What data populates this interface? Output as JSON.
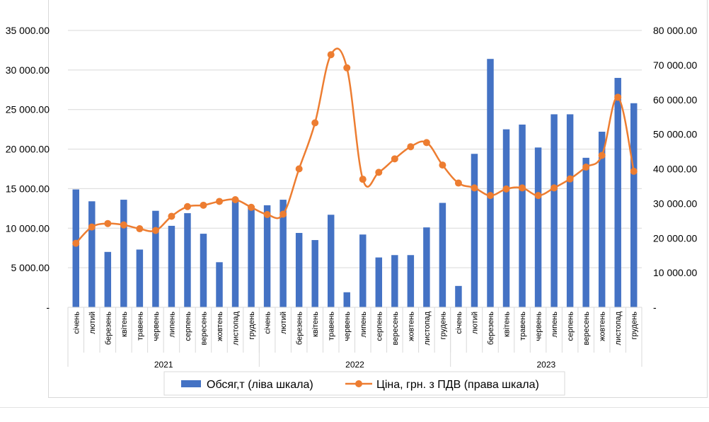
{
  "chart_data": {
    "type": "bar+line",
    "title": "",
    "categories": [
      "січень",
      "лютий",
      "березень",
      "квітень",
      "травень",
      "червень",
      "липень",
      "серпень",
      "вересень",
      "жовтень",
      "листопад",
      "грудень",
      "січень",
      "лютий",
      "березень",
      "квітень",
      "травень",
      "червень",
      "липень",
      "серпень",
      "вересень",
      "жовтень",
      "листопад",
      "грудень",
      "січень",
      "лютий",
      "березень",
      "квітень",
      "травень",
      "червень",
      "липень",
      "серпень",
      "вересень",
      "жовтень",
      "листопад",
      "грудень"
    ],
    "year_groups": [
      {
        "label": "2021",
        "count": 12
      },
      {
        "label": "2022",
        "count": 12
      },
      {
        "label": "2023",
        "count": 12
      }
    ],
    "series": [
      {
        "name": "Обсяг,т (ліва шкала)",
        "type": "bar",
        "axis": "left",
        "color": "#4472c4",
        "values": [
          14900,
          13400,
          7000,
          13600,
          7300,
          12200,
          10300,
          11900,
          9300,
          5700,
          13700,
          12800,
          12900,
          13600,
          9400,
          8500,
          11700,
          1900,
          9200,
          6300,
          6600,
          6600,
          10100,
          13200,
          2700,
          19400,
          31400,
          22500,
          23100,
          20200,
          24400,
          24400,
          18900,
          22200,
          29000,
          25800
        ]
      },
      {
        "name": "Ціна, грн. з ПДВ (права шкала)",
        "type": "line",
        "axis": "right",
        "color": "#ed7d31",
        "values": [
          18500,
          23200,
          24200,
          23800,
          22700,
          22200,
          26300,
          29100,
          29500,
          30600,
          31100,
          28900,
          26800,
          26900,
          40000,
          53300,
          73000,
          69200,
          37000,
          39000,
          42900,
          46400,
          47600,
          41100,
          35900,
          34500,
          32300,
          34200,
          34500,
          32300,
          34500,
          37100,
          40500,
          43900,
          60700,
          39300
        ]
      }
    ],
    "left_axis": {
      "min": 0,
      "max": 35000,
      "ticks": [
        "-",
        "5 000.00",
        "10 000.00",
        "15 000.00",
        "20 000.00",
        "25 000.00",
        "30 000.00",
        "35 000.00"
      ]
    },
    "right_axis": {
      "min": 0,
      "max": 80000,
      "ticks": [
        "-",
        "10 000.00",
        "20 000.00",
        "30 000.00",
        "40 000.00",
        "50 000.00",
        "60 000.00",
        "70 000.00",
        "80 000.00"
      ]
    },
    "grid": true,
    "legend": "bottom"
  }
}
